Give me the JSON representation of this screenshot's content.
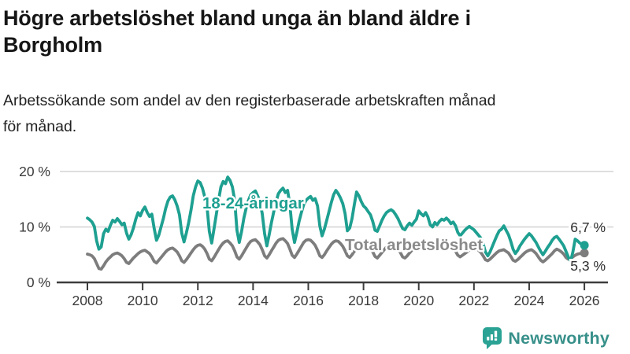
{
  "page": {
    "title_line1": "Högre arbetslöshet bland unga än bland äldre i",
    "title_line2": "Borgholm",
    "subtitle_line1": "Arbetssökande som andel av den registerbaserade arbetskraften månad",
    "subtitle_line2": "för månad.",
    "background_color": "#ffffff"
  },
  "branding": {
    "logo_text": "Newsworthy",
    "logo_icon": "newsworthy-bubble-bars-icon",
    "logo_text_color": "#38908a",
    "logo_icon_color": "#2aa294"
  },
  "chart_data": {
    "type": "line",
    "x_unit": "month",
    "x_start": "2008-01",
    "x_end": "2026-01",
    "x_ticks": [
      2008,
      2010,
      2012,
      2014,
      2016,
      2018,
      2020,
      2022,
      2024,
      2026
    ],
    "y_ticks": [
      {
        "value": 0,
        "label": "0 %"
      },
      {
        "value": 10,
        "label": "10 %"
      },
      {
        "value": 20,
        "label": "20 %"
      }
    ],
    "ylim": [
      0,
      21
    ],
    "grid": "horizontal",
    "legend_position": "inline-labels",
    "gridline_color": "#dedede",
    "axis_color": "#3d3d3d",
    "series": [
      {
        "name": "18-24-åringar",
        "label_text": "18-24-åringar",
        "color": "#1ea091",
        "label_color": "#1ea091",
        "end_value": 6.7,
        "end_label": "6,7 %",
        "values": [
          11.6,
          11.3,
          10.9,
          10.1,
          7.5,
          6.0,
          6.4,
          8.8,
          9.6,
          9.2,
          10.3,
          11.2,
          10.9,
          11.5,
          11.0,
          10.4,
          10.7,
          8.9,
          7.8,
          8.6,
          9.8,
          11.4,
          12.6,
          12.0,
          13.0,
          13.6,
          12.6,
          11.9,
          12.3,
          9.8,
          7.6,
          8.5,
          10.0,
          11.5,
          13.3,
          14.7,
          15.4,
          15.6,
          14.9,
          13.8,
          12.2,
          8.9,
          7.3,
          8.9,
          10.8,
          13.0,
          15.6,
          17.2,
          18.3,
          18.0,
          17.0,
          15.4,
          13.6,
          9.2,
          7.1,
          9.6,
          12.2,
          14.8,
          17.2,
          18.2,
          17.8,
          19.0,
          18.4,
          17.2,
          14.8,
          9.4,
          7.2,
          9.2,
          11.6,
          13.4,
          14.8,
          15.8,
          16.2,
          16.5,
          15.6,
          14.6,
          12.4,
          8.8,
          6.6,
          8.6,
          10.8,
          12.8,
          14.6,
          16.0,
          16.6,
          17.0,
          16.2,
          16.6,
          14.0,
          9.6,
          7.2,
          9.0,
          11.0,
          12.6,
          14.0,
          14.8,
          15.2,
          15.5,
          14.8,
          15.1,
          13.8,
          10.2,
          8.4,
          9.6,
          11.2,
          12.8,
          14.4,
          15.8,
          16.6,
          16.0,
          15.2,
          14.2,
          12.4,
          9.3,
          9.8,
          11.5,
          14.0,
          16.3,
          15.6,
          14.6,
          13.8,
          13.4,
          12.8,
          12.2,
          11.0,
          9.4,
          9.2,
          10.2,
          11.2,
          12.0,
          12.6,
          12.9,
          13.1,
          12.8,
          12.2,
          11.5,
          10.6,
          9.7,
          9.5,
          10.2,
          10.7,
          10.3,
          10.9,
          11.4,
          12.9,
          12.4,
          12.0,
          12.6,
          11.8,
          10.4,
          10.0,
          10.8,
          10.4,
          11.0,
          11.4,
          11.2,
          11.6,
          11.2,
          10.6,
          10.9,
          10.2,
          9.0,
          8.4,
          8.9,
          9.4,
          9.8,
          10.1,
          9.8,
          9.5,
          9.0,
          8.5,
          8.0,
          7.0,
          5.5,
          4.8,
          5.5,
          6.5,
          7.5,
          8.5,
          9.3,
          9.6,
          10.2,
          9.4,
          8.6,
          7.4,
          6.0,
          5.2,
          5.8,
          6.6,
          7.2,
          7.8,
          8.3,
          8.8,
          8.4,
          7.8,
          7.2,
          6.4,
          5.6,
          5.0,
          5.6,
          6.3,
          6.9,
          7.6,
          8.1,
          8.3,
          7.8,
          7.2,
          6.6,
          5.6,
          4.6,
          3.8,
          5.5,
          7.8,
          7.5,
          7.1,
          6.9,
          6.7
        ]
      },
      {
        "name": "Total arbetslöshet",
        "label_text": "Total arbetslöshet",
        "color": "#7d7d7d",
        "label_color": "#8a8a8a",
        "end_value": 5.3,
        "end_label": "5,3 %",
        "values": [
          5.1,
          5.0,
          4.8,
          4.3,
          3.4,
          2.5,
          2.4,
          3.0,
          3.7,
          4.2,
          4.6,
          5.0,
          5.2,
          5.3,
          5.1,
          4.8,
          4.3,
          3.6,
          3.4,
          3.9,
          4.4,
          4.8,
          5.2,
          5.5,
          5.7,
          5.8,
          5.5,
          5.2,
          4.6,
          3.8,
          3.5,
          4.0,
          4.5,
          5.0,
          5.5,
          5.9,
          6.1,
          6.2,
          5.9,
          5.5,
          4.8,
          3.9,
          3.6,
          4.1,
          4.7,
          5.3,
          5.9,
          6.4,
          6.7,
          6.8,
          6.5,
          6.0,
          5.2,
          4.2,
          3.9,
          4.5,
          5.2,
          5.9,
          6.6,
          7.1,
          7.4,
          7.5,
          7.1,
          6.6,
          5.7,
          4.6,
          4.2,
          4.8,
          5.5,
          6.2,
          6.9,
          7.4,
          7.6,
          7.7,
          7.3,
          6.8,
          5.9,
          4.8,
          4.4,
          5.0,
          5.7,
          6.4,
          7.1,
          7.6,
          7.8,
          7.9,
          7.5,
          7.0,
          6.0,
          4.9,
          4.5,
          5.1,
          5.8,
          6.5,
          7.2,
          7.6,
          7.7,
          7.6,
          7.2,
          6.7,
          5.8,
          4.8,
          4.5,
          5.0,
          5.7,
          6.3,
          6.9,
          7.3,
          7.5,
          7.4,
          7.0,
          6.5,
          5.7,
          4.8,
          4.5,
          5.0,
          5.6,
          6.1,
          6.7,
          7.1,
          7.2,
          7.1,
          6.8,
          6.3,
          5.5,
          4.7,
          4.4,
          4.9,
          5.4,
          5.9,
          6.4,
          6.8,
          6.9,
          6.8,
          6.5,
          6.1,
          5.4,
          4.6,
          4.4,
          4.8,
          5.3,
          5.8,
          6.2,
          6.6,
          6.9,
          7.0,
          7.2,
          7.4,
          7.0,
          6.4,
          6.0,
          6.2,
          6.3,
          6.4,
          6.6,
          6.9,
          7.0,
          6.9,
          6.6,
          6.2,
          5.6,
          4.9,
          4.6,
          4.9,
          5.2,
          5.5,
          5.8,
          6.1,
          6.2,
          6.1,
          5.8,
          5.4,
          4.8,
          4.1,
          3.9,
          4.2,
          4.6,
          5.0,
          5.4,
          5.7,
          5.8,
          5.9,
          5.6,
          5.3,
          4.7,
          4.0,
          3.8,
          4.1,
          4.5,
          4.9,
          5.3,
          5.6,
          5.8,
          5.9,
          5.6,
          5.2,
          4.6,
          4.0,
          3.7,
          4.0,
          4.4,
          4.8,
          5.2,
          5.7,
          6.0,
          5.8,
          5.5,
          5.1,
          4.5,
          4.2,
          4.3,
          4.6,
          4.9,
          5.1,
          5.2,
          5.2,
          5.3
        ]
      }
    ]
  }
}
